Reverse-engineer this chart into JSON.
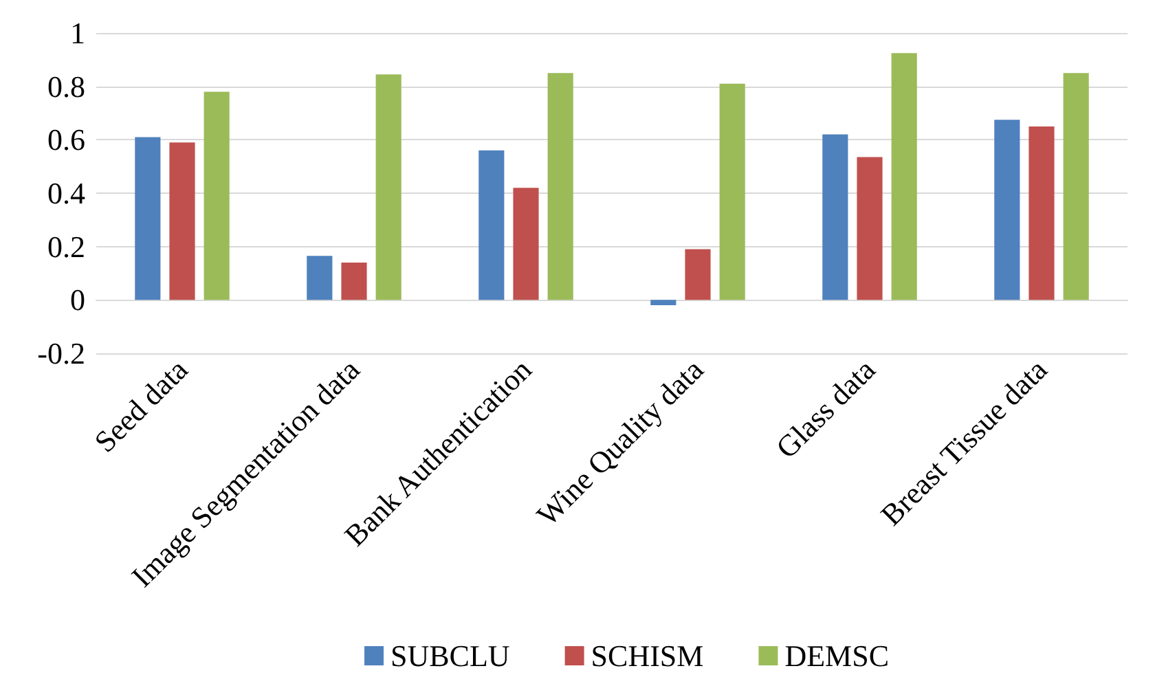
{
  "chart_data": {
    "type": "bar",
    "categories": [
      "Seed data",
      "Image Segmentation data",
      "Bank Authentication",
      "Wine Quality data",
      "Glass data",
      "Breast Tissue data"
    ],
    "series": [
      {
        "name": "SUBCLU",
        "color": "#4f81bd",
        "values": [
          0.61,
          0.165,
          0.56,
          -0.02,
          0.62,
          0.675
        ]
      },
      {
        "name": "SCHISM",
        "color": "#c0504d",
        "values": [
          0.59,
          0.14,
          0.42,
          0.19,
          0.535,
          0.65
        ]
      },
      {
        "name": "DEMSC",
        "color": "#9bbb59",
        "values": [
          0.78,
          0.845,
          0.85,
          0.81,
          0.925,
          0.85
        ]
      }
    ],
    "ylim": [
      -0.2,
      1
    ],
    "yticks": [
      -0.2,
      0,
      0.2,
      0.4,
      0.6,
      0.8,
      1
    ],
    "grid": "y",
    "legend": "bottom"
  }
}
